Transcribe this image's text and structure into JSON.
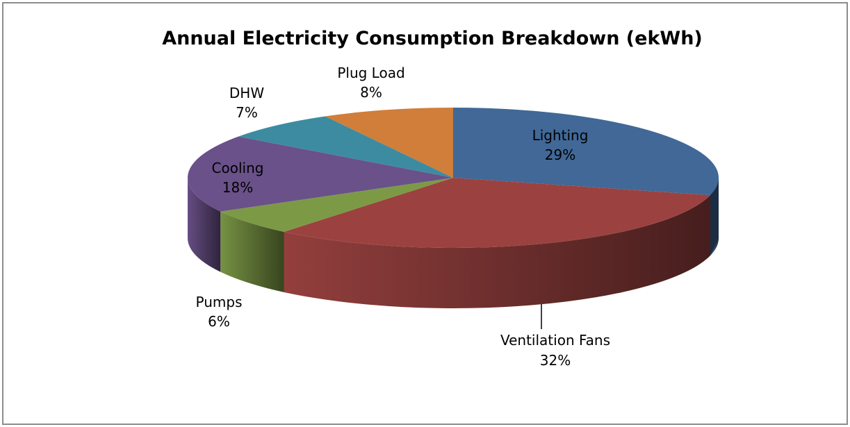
{
  "chart_data": {
    "type": "pie",
    "title": "Annual Electricity Consumption Breakdown (ekWh)",
    "three_d": true,
    "slices": [
      {
        "name": "Lighting",
        "value": 29,
        "value_label": "29%",
        "color": "#416897"
      },
      {
        "name": "Ventilation Fans",
        "value": 32,
        "value_label": "32%",
        "color": "#9b4240"
      },
      {
        "name": "Pumps",
        "value": 6,
        "value_label": "6%",
        "color": "#7c9a46"
      },
      {
        "name": "Cooling",
        "value": 18,
        "value_label": "18%",
        "color": "#6a5189"
      },
      {
        "name": "DHW",
        "value": 7,
        "value_label": "7%",
        "color": "#3d8ba1"
      },
      {
        "name": "Plug Load",
        "value": 8,
        "value_label": "8%",
        "color": "#d07e3a"
      }
    ],
    "start_at": "top",
    "direction": "clockwise",
    "legend": "none"
  }
}
